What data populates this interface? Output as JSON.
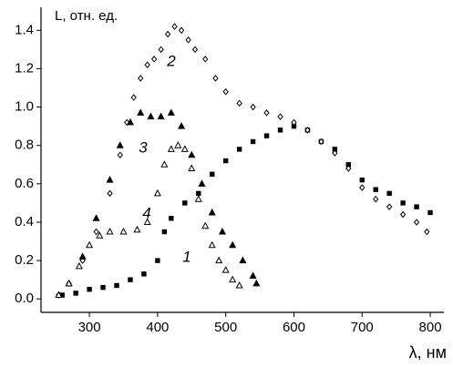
{
  "chart_data": {
    "type": "scatter",
    "ylabel": "L, отн. ед.",
    "xlabel": "λ, нм",
    "xlim": [
      229,
      820
    ],
    "ylim": [
      -0.07,
      1.52
    ],
    "xticks": [
      300,
      400,
      500,
      600,
      700,
      800
    ],
    "yticks": [
      {
        "value": 0,
        "label": "0.0"
      },
      0.2,
      0.4,
      0.6,
      0.8,
      {
        "value": 1,
        "label": "1.0"
      },
      1.2,
      1.4
    ],
    "series": [
      {
        "name": "1",
        "color": "#000000",
        "marker": "square",
        "filled": true,
        "x": [
          260,
          280,
          300,
          320,
          340,
          360,
          380,
          400,
          410,
          420,
          440,
          460,
          480,
          500,
          520,
          540,
          560,
          580,
          600,
          620,
          640,
          660,
          680,
          700,
          720,
          740,
          760,
          780,
          800
        ],
        "values": [
          0.02,
          0.03,
          0.05,
          0.06,
          0.07,
          0.1,
          0.13,
          0.2,
          0.35,
          0.42,
          0.5,
          0.55,
          0.65,
          0.72,
          0.78,
          0.82,
          0.85,
          0.88,
          0.9,
          0.88,
          0.82,
          0.78,
          0.7,
          0.62,
          0.57,
          0.55,
          0.5,
          0.48,
          0.45
        ]
      },
      {
        "name": "2",
        "color": "#000000",
        "marker": "diamond",
        "filled": false,
        "x": [
          255,
          270,
          290,
          310,
          330,
          345,
          355,
          365,
          375,
          385,
          395,
          405,
          415,
          425,
          435,
          445,
          455,
          470,
          485,
          500,
          520,
          540,
          560,
          580,
          600,
          620,
          640,
          660,
          680,
          700,
          720,
          740,
          760,
          780,
          795
        ],
        "values": [
          0.02,
          0.08,
          0.2,
          0.35,
          0.55,
          0.75,
          0.92,
          1.05,
          1.15,
          1.22,
          1.25,
          1.3,
          1.38,
          1.42,
          1.4,
          1.35,
          1.3,
          1.25,
          1.15,
          1.08,
          1.02,
          1.0,
          0.97,
          0.95,
          0.92,
          0.88,
          0.82,
          0.76,
          0.68,
          0.58,
          0.52,
          0.48,
          0.44,
          0.4,
          0.35
        ]
      },
      {
        "name": "3",
        "color": "#000000",
        "marker": "triangle",
        "filled": true,
        "x": [
          255,
          270,
          290,
          310,
          330,
          345,
          360,
          375,
          390,
          405,
          420,
          435,
          450,
          465,
          480,
          495,
          510,
          525,
          540,
          545
        ],
        "values": [
          0.02,
          0.08,
          0.22,
          0.42,
          0.62,
          0.8,
          0.92,
          0.97,
          0.95,
          0.95,
          0.97,
          0.9,
          0.75,
          0.6,
          0.45,
          0.35,
          0.28,
          0.2,
          0.12,
          0.08
        ]
      },
      {
        "name": "4",
        "color": "#000000",
        "marker": "triangle",
        "filled": false,
        "x": [
          255,
          270,
          285,
          300,
          315,
          330,
          350,
          370,
          385,
          400,
          410,
          420,
          430,
          440,
          450,
          460,
          470,
          480,
          490,
          500,
          510,
          520
        ],
        "values": [
          0.02,
          0.08,
          0.17,
          0.28,
          0.33,
          0.35,
          0.35,
          0.36,
          0.4,
          0.55,
          0.7,
          0.78,
          0.8,
          0.78,
          0.68,
          0.52,
          0.38,
          0.28,
          0.2,
          0.15,
          0.1,
          0.07
        ]
      }
    ]
  }
}
